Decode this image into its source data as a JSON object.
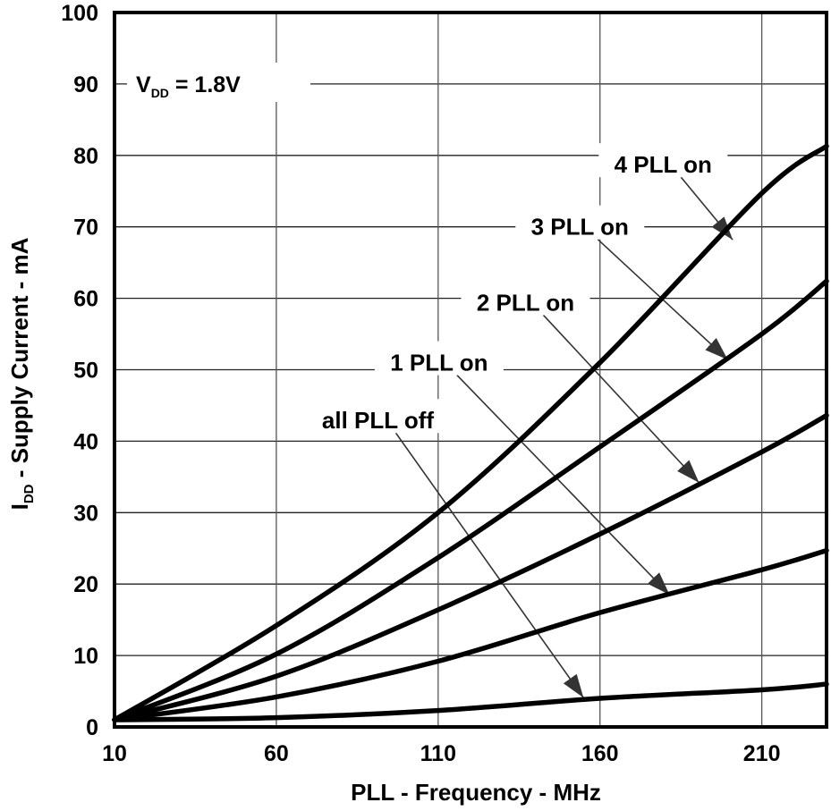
{
  "chart_data": {
    "type": "line",
    "title": "",
    "xlabel": "PLL - Frequency - MHz",
    "ylabel": {
      "main": "I",
      "sub": "DD",
      "rest": " - Supply Current - mA"
    },
    "annotation_vdd": {
      "main": "V",
      "sub": "DD",
      "rest": " = 1.8V"
    },
    "xlim": [
      10,
      230
    ],
    "ylim": [
      0,
      100
    ],
    "xticks": [
      10,
      60,
      110,
      160,
      210
    ],
    "yticks": [
      0,
      10,
      20,
      30,
      40,
      50,
      60,
      70,
      80,
      90,
      100
    ],
    "grid": true,
    "legend": "none",
    "series": [
      {
        "name": "4 PLL on",
        "x": [
          10,
          60,
          110,
          160,
          210,
          230
        ],
        "y": [
          1,
          14.2,
          30,
          51,
          74.7,
          81.3
        ],
        "label_at": [
          179.5,
          78.7
        ],
        "arrow_to": [
          201,
          68.2
        ]
      },
      {
        "name": "3 PLL on",
        "x": [
          10,
          60,
          110,
          160,
          210,
          230
        ],
        "y": [
          1,
          10.2,
          23.7,
          39.2,
          55,
          62.4
        ],
        "label_at": [
          153.8,
          70
        ],
        "arrow_to": [
          199.5,
          51.4
        ]
      },
      {
        "name": "2 PLL on",
        "x": [
          10,
          60,
          110,
          160,
          210,
          230
        ],
        "y": [
          1,
          7.1,
          16.4,
          27,
          38.5,
          43.6
        ],
        "label_at": [
          137,
          59.4
        ],
        "arrow_to": [
          190.6,
          34.2
        ]
      },
      {
        "name": "1 PLL on",
        "x": [
          10,
          60,
          110,
          160,
          210,
          230
        ],
        "y": [
          1,
          4.2,
          9.2,
          16,
          22,
          24.7
        ],
        "label_at": [
          110.3,
          51
        ],
        "arrow_to": [
          181.5,
          18.5
        ]
      },
      {
        "name": "all PLL off",
        "x": [
          10,
          60,
          110,
          160,
          210,
          230
        ],
        "y": [
          1,
          1.3,
          2.3,
          4,
          5.2,
          6
        ],
        "label_at": [
          91.4,
          42.9
        ],
        "arrow_to": [
          154.9,
          4.1
        ]
      }
    ],
    "colors": {
      "line": "#000000",
      "grid": "#555555",
      "arrow": "#333333"
    }
  }
}
